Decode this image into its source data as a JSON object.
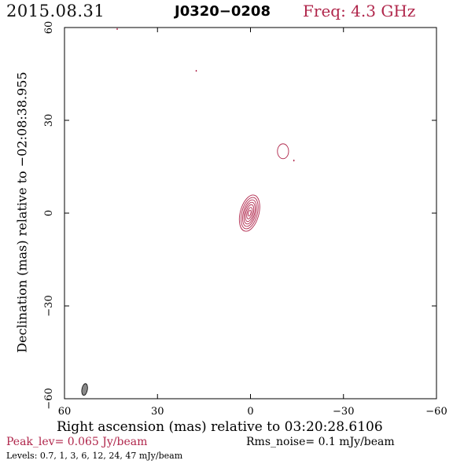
{
  "header": {
    "date": "2015.08.31",
    "source": "J0320−0208",
    "freq": "Freq: 4.3 GHz"
  },
  "footer": {
    "peak": "Peak_lev=  0.065 Jy/beam",
    "rms": "Rms_noise=   0.1 mJy/beam",
    "levels": "Levels: 0.7,    1,    3,    6,   12,   24,   47 mJy/beam"
  },
  "colors": {
    "contour": "#b0264b",
    "beam_fill": "#888888",
    "axis": "#000000"
  },
  "chart_data": {
    "type": "contour",
    "xlabel": "Right ascension (mas) relative to 03:20:28.6106",
    "ylabel": "Declination (mas) relative to −02:08:38.955",
    "xlim": [
      60,
      -60
    ],
    "ylim": [
      -60,
      60
    ],
    "xticks": [
      {
        "value": 60,
        "label": "60"
      },
      {
        "value": 30,
        "label": "30"
      },
      {
        "value": 0,
        "label": "0"
      },
      {
        "value": -30,
        "label": "−30"
      },
      {
        "value": -60,
        "label": "−60"
      }
    ],
    "yticks": [
      {
        "value": -60,
        "label": "−60"
      },
      {
        "value": -30,
        "label": "−30"
      },
      {
        "value": 0,
        "label": "0"
      },
      {
        "value": 30,
        "label": "30"
      },
      {
        "value": 60,
        "label": "60"
      }
    ],
    "levels_mJy": [
      0.7,
      1,
      3,
      6,
      12,
      24,
      47
    ],
    "core": {
      "x": 0.3,
      "y": 0,
      "contours": [
        {
          "rx": 3.0,
          "ry": 6.0,
          "angle": 15
        },
        {
          "rx": 2.5,
          "ry": 5.2,
          "angle": 15
        },
        {
          "rx": 2.0,
          "ry": 4.4,
          "angle": 15
        },
        {
          "rx": 1.6,
          "ry": 3.6,
          "angle": 15
        },
        {
          "rx": 1.2,
          "ry": 2.8,
          "angle": 15
        },
        {
          "rx": 0.8,
          "ry": 1.9,
          "angle": 15
        },
        {
          "rx": 0.4,
          "ry": 1.0,
          "angle": 15
        }
      ]
    },
    "components": [
      {
        "x": -10.5,
        "y": 20,
        "rx": 1.8,
        "ry": 2.4,
        "angle": 0
      }
    ],
    "specks": [
      {
        "x": 17.5,
        "y": 46
      },
      {
        "x": -14,
        "y": 17
      },
      {
        "x": 43,
        "y": 59.5
      }
    ],
    "beam": {
      "x": 53.5,
      "y": -57,
      "rx": 0.9,
      "ry": 1.9,
      "angle": 10
    }
  }
}
